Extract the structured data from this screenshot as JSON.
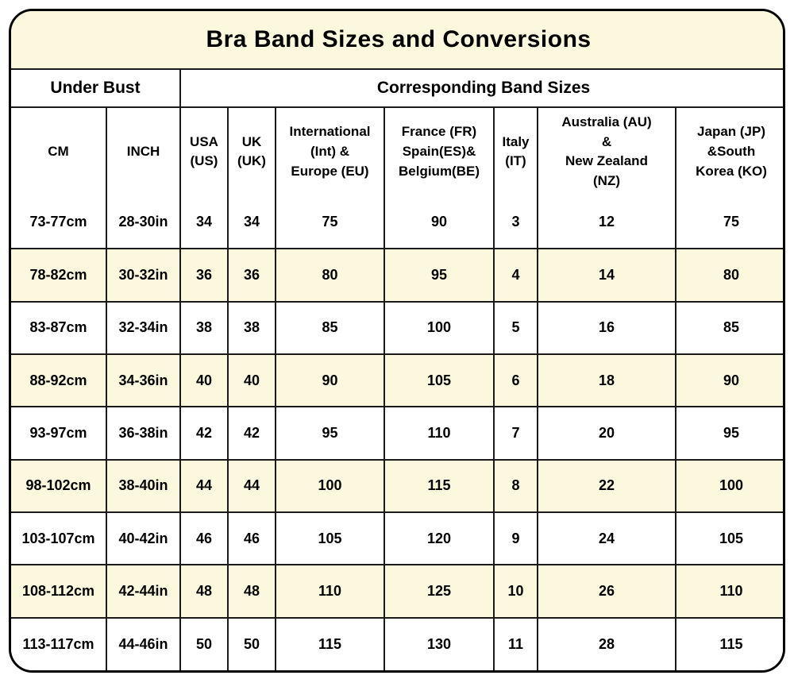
{
  "colors": {
    "cream_band": "#fcf8dd",
    "row_alt": "#fcf8dd",
    "row_base": "#ffffff",
    "grid_line": "#1a1a1a",
    "outer_border": "#000000",
    "text": "#000000"
  },
  "table": {
    "title": "Bra Band Sizes and Conversions",
    "group_headers": {
      "under_bust": "Under Bust",
      "band_sizes": "Corresponding Band Sizes"
    },
    "columns": [
      "CM",
      "INCH",
      "USA\n(US)",
      "UK\n(UK)",
      "International\n(Int) &\nEurope (EU)",
      "France (FR)\nSpain(ES)&\nBelgium(BE)",
      "Italy\n(IT)",
      "Australia (AU)\n&\nNew Zealand\n(NZ)",
      "Japan (JP)\n&South\nKorea (KO)"
    ],
    "column_keys": [
      "cm",
      "inch",
      "us",
      "uk",
      "eu",
      "fr-es-be",
      "it",
      "au-nz",
      "jp-ko"
    ],
    "rows": [
      [
        "73-77cm",
        "28-30in",
        "34",
        "34",
        "75",
        "90",
        "3",
        "12",
        "75"
      ],
      [
        "78-82cm",
        "30-32in",
        "36",
        "36",
        "80",
        "95",
        "4",
        "14",
        "80"
      ],
      [
        "83-87cm",
        "32-34in",
        "38",
        "38",
        "85",
        "100",
        "5",
        "16",
        "85"
      ],
      [
        "88-92cm",
        "34-36in",
        "40",
        "40",
        "90",
        "105",
        "6",
        "18",
        "90"
      ],
      [
        "93-97cm",
        "36-38in",
        "42",
        "42",
        "95",
        "110",
        "7",
        "20",
        "95"
      ],
      [
        "98-102cm",
        "38-40in",
        "44",
        "44",
        "100",
        "115",
        "8",
        "22",
        "100"
      ],
      [
        "103-107cm",
        "40-42in",
        "46",
        "46",
        "105",
        "120",
        "9",
        "24",
        "105"
      ],
      [
        "108-112cm",
        "42-44in",
        "48",
        "48",
        "110",
        "125",
        "10",
        "26",
        "110"
      ],
      [
        "113-117cm",
        "44-46in",
        "50",
        "50",
        "115",
        "130",
        "11",
        "28",
        "115"
      ]
    ]
  },
  "chart_data": {
    "type": "table",
    "title": "Bra Band Sizes and Conversions",
    "group_headers": [
      {
        "label": "Under Bust",
        "colspan": 2
      },
      {
        "label": "Corresponding Band Sizes",
        "colspan": 7
      }
    ],
    "columns": [
      "CM",
      "INCH",
      "USA (US)",
      "UK (UK)",
      "International (Int) & Europe (EU)",
      "France (FR) Spain(ES)& Belgium(BE)",
      "Italy (IT)",
      "Australia (AU) & New Zealand (NZ)",
      "Japan (JP) &South Korea (KO)"
    ],
    "rows": [
      [
        "73-77cm",
        "28-30in",
        34,
        34,
        75,
        90,
        3,
        12,
        75
      ],
      [
        "78-82cm",
        "30-32in",
        36,
        36,
        80,
        95,
        4,
        14,
        80
      ],
      [
        "83-87cm",
        "32-34in",
        38,
        38,
        85,
        100,
        5,
        16,
        85
      ],
      [
        "88-92cm",
        "34-36in",
        40,
        40,
        90,
        105,
        6,
        18,
        90
      ],
      [
        "93-97cm",
        "36-38in",
        42,
        42,
        95,
        110,
        7,
        20,
        95
      ],
      [
        "98-102cm",
        "38-40in",
        44,
        44,
        100,
        115,
        8,
        22,
        100
      ],
      [
        "103-107cm",
        "40-42in",
        46,
        46,
        105,
        120,
        9,
        24,
        105
      ],
      [
        "108-112cm",
        "42-44in",
        48,
        48,
        110,
        125,
        10,
        26,
        110
      ],
      [
        "113-117cm",
        "44-46in",
        50,
        50,
        115,
        130,
        11,
        28,
        115
      ]
    ],
    "layout_hints": {
      "striped_rows": "even data rows cream #fcf8dd, odd rows white",
      "outer_border": "3px black, rounded corners ~30px",
      "all_text_bold": true
    }
  }
}
